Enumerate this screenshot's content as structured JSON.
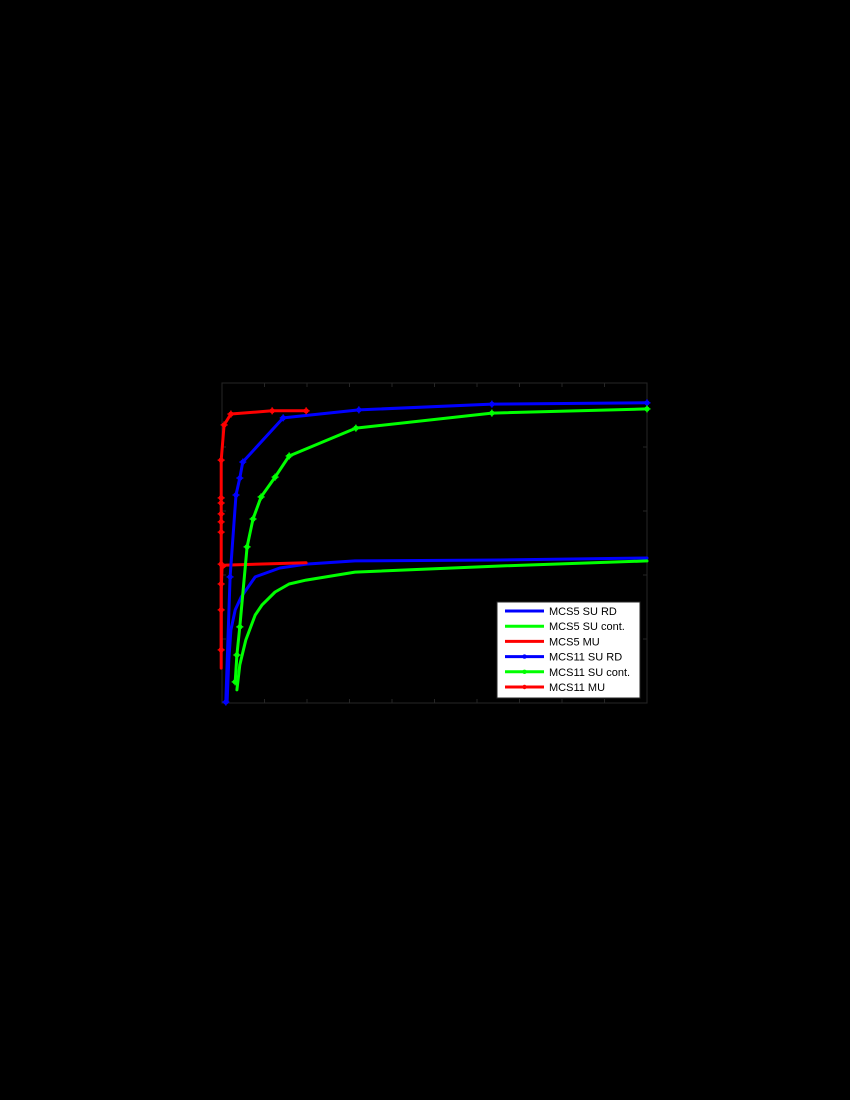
{
  "page": {
    "background": "#000000"
  },
  "chart_data": {
    "type": "line",
    "title": "",
    "xlabel": "",
    "ylabel": "",
    "note": "Axis tick labels and axis titles are rendered black-on-black and are not legible; values below are in normalized axis units (10 x-intervals, 10 y-units spanning the plot frame).",
    "xlim": [
      0,
      10
    ],
    "ylim": [
      0,
      10
    ],
    "x_ticks": [
      0,
      1,
      2,
      3,
      4,
      5,
      6,
      7,
      8,
      9,
      10
    ],
    "grid": false,
    "legend_position": "lower right",
    "frame_color": "#262626",
    "series": [
      {
        "name": "MCS5 SU RD",
        "color": "#0000ff",
        "marker": "none",
        "x": [
          0.12,
          0.16,
          0.21,
          0.31,
          0.45,
          0.78,
          1.36,
          1.98,
          3.13,
          6.54,
          10.0
        ],
        "y": [
          0.03,
          1.34,
          2.28,
          2.91,
          3.31,
          3.94,
          4.22,
          4.34,
          4.44,
          4.47,
          4.53
        ]
      },
      {
        "name": "MCS5 SU cont.",
        "color": "#00ff00",
        "marker": "none",
        "x": [
          0.35,
          0.42,
          0.56,
          0.78,
          0.94,
          1.25,
          1.58,
          1.98,
          3.13,
          6.54,
          10.0
        ],
        "y": [
          0.41,
          1.19,
          1.97,
          2.75,
          3.06,
          3.47,
          3.72,
          3.84,
          4.09,
          4.28,
          4.44
        ]
      },
      {
        "name": "MCS5 MU",
        "color": "#ff0000",
        "marker": "none",
        "x": [
          -0.02,
          -0.02,
          0.0,
          0.09,
          1.98
        ],
        "y": [
          1.09,
          3.5,
          4.22,
          4.31,
          4.38
        ]
      },
      {
        "name": "MCS11 SU RD",
        "color": "#0000ff",
        "marker": "asterisk",
        "x": [
          0.09,
          0.19,
          0.33,
          0.42,
          0.49,
          1.44,
          3.22,
          6.35,
          10.0
        ],
        "y": [
          0.03,
          3.94,
          6.5,
          7.03,
          7.53,
          8.91,
          9.16,
          9.34,
          9.38
        ]
      },
      {
        "name": "MCS11 SU cont.",
        "color": "#00ff00",
        "marker": "asterisk",
        "x": [
          0.31,
          0.35,
          0.42,
          0.59,
          0.73,
          0.92,
          1.25,
          1.58,
          3.15,
          6.35,
          10.0
        ],
        "y": [
          0.66,
          1.5,
          2.38,
          4.88,
          5.75,
          6.44,
          7.06,
          7.72,
          8.59,
          9.06,
          9.19
        ]
      },
      {
        "name": "MCS11 MU",
        "color": "#ff0000",
        "marker": "asterisk",
        "x": [
          -0.02,
          -0.02,
          -0.02,
          -0.02,
          -0.02,
          -0.02,
          -0.02,
          -0.02,
          -0.02,
          -0.02,
          0.05,
          0.21,
          1.18,
          1.98
        ],
        "y": [
          1.66,
          2.91,
          3.72,
          4.34,
          5.34,
          5.66,
          5.91,
          6.25,
          6.41,
          7.59,
          8.69,
          9.03,
          9.13,
          9.13
        ]
      }
    ],
    "legend": [
      {
        "label": "MCS5 SU RD",
        "color": "#0000ff",
        "marker": false
      },
      {
        "label": "MCS5 SU cont.",
        "color": "#00ff00",
        "marker": false
      },
      {
        "label": "MCS5 MU",
        "color": "#ff0000",
        "marker": false
      },
      {
        "label": "MCS11 SU RD",
        "color": "#0000ff",
        "marker": true
      },
      {
        "label": "MCS11 SU cont.",
        "color": "#00ff00",
        "marker": true
      },
      {
        "label": "MCS11 MU",
        "color": "#ff0000",
        "marker": true
      }
    ]
  }
}
